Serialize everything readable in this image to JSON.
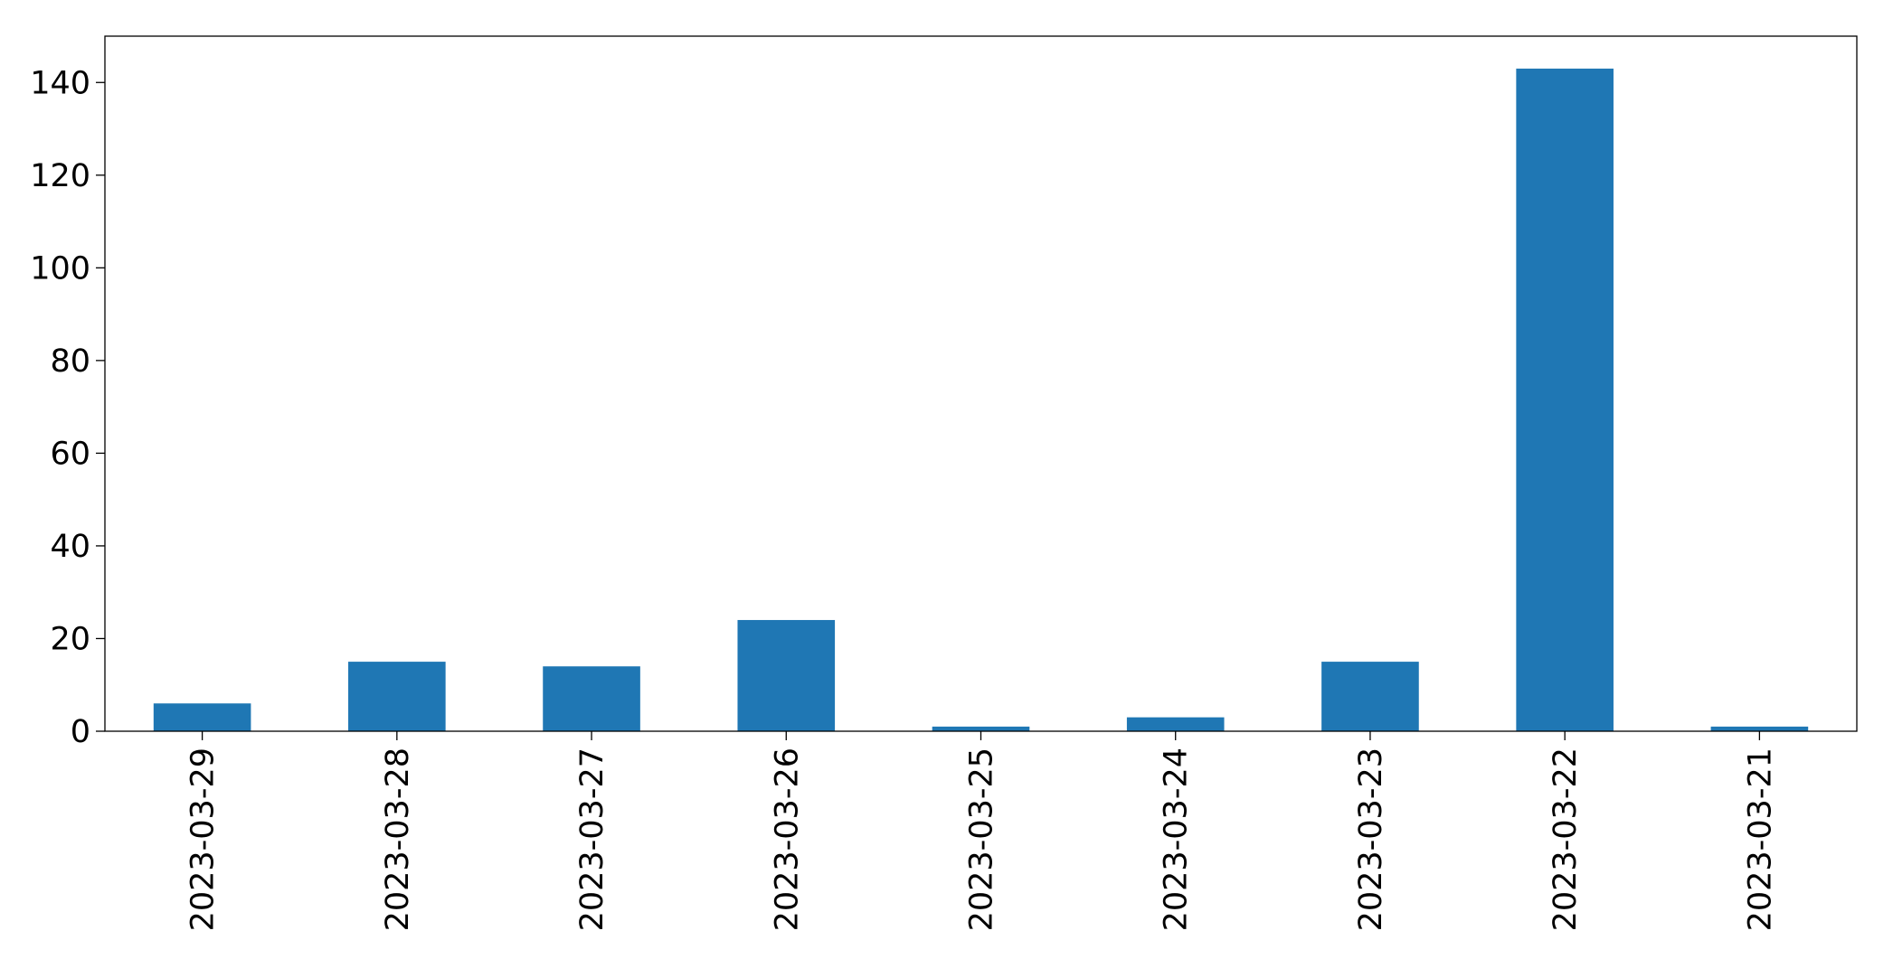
{
  "chart_data": {
    "type": "bar",
    "categories": [
      "2023-03-29",
      "2023-03-28",
      "2023-03-27",
      "2023-03-26",
      "2023-03-25",
      "2023-03-24",
      "2023-03-23",
      "2023-03-22",
      "2023-03-21"
    ],
    "values": [
      6,
      15,
      14,
      24,
      1,
      3,
      15,
      143,
      1
    ],
    "color": "#1f77b4",
    "ylim": [
      0,
      150
    ],
    "yticks": [
      0,
      20,
      40,
      60,
      80,
      100,
      120,
      140
    ],
    "grid": false
  }
}
